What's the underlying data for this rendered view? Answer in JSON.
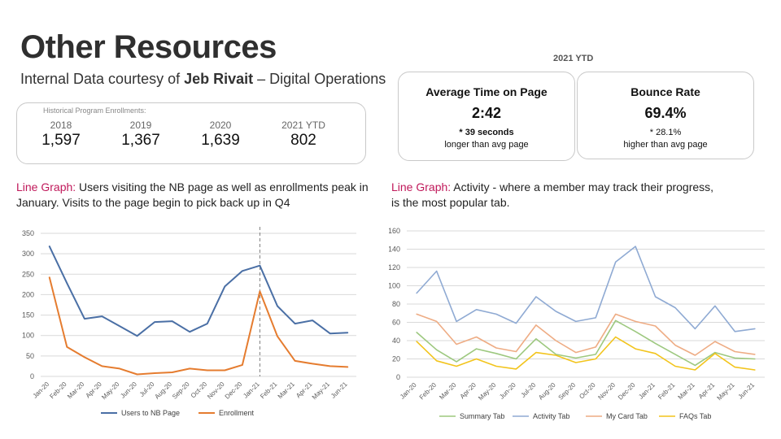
{
  "header": {
    "title": "Other Resources",
    "subtitle_prefix": "Internal Data courtesy of ",
    "subtitle_name": "Jeb Rivait",
    "subtitle_suffix": " – Digital Operations"
  },
  "historical": {
    "caption": "Historical Program Enrollments:",
    "items": [
      {
        "year": "2018",
        "value": "1,597"
      },
      {
        "year": "2019",
        "value": "1,367"
      },
      {
        "year": "2020",
        "value": "1,639"
      },
      {
        "year": "2021 YTD",
        "value": "802"
      }
    ]
  },
  "ytd_label": "2021 YTD",
  "kpis": [
    {
      "title_bold": "Average Time",
      "title_rest": " on Page",
      "value": "2:42",
      "note_bold": "* 39 seconds",
      "note_rest": "longer than avg page"
    },
    {
      "title_bold": "Bounce Rate",
      "title_rest": "",
      "value": "69.4%",
      "note_bold": "*  28.1%",
      "note_rest": "higher than avg page"
    }
  ],
  "captions": {
    "left": {
      "lg": "Line Graph:",
      "t1": " Users visiting the NB page as well as enrollments peak in ",
      "b1": "January",
      "t2": ". Visits to the page begin to pick back up in Q4"
    },
    "right": {
      "lg": "Line Graph:",
      "b1": " Activity",
      "t1": " - where a member may track their progress, ",
      "b2": "is the most popular tab",
      "t2": "."
    }
  },
  "colors": {
    "blue": "#4a6fa5",
    "orange": "#e57c2f",
    "green": "#9dc87f",
    "lightblue": "#8faad3",
    "peach": "#eeac84",
    "gold": "#f2c41c"
  },
  "chart_data": [
    {
      "type": "line",
      "categories": [
        "Jan-20",
        "Feb-20",
        "Mar-20",
        "Apr-20",
        "May-20",
        "Jun-20",
        "Jul-20",
        "Aug-20",
        "Sep-20",
        "Oct-20",
        "Nov-20",
        "Dec-20",
        "Jan-21",
        "Feb-21",
        "Mar-21",
        "Apr-21",
        "May-21",
        "Jun-21"
      ],
      "series": [
        {
          "name": "Users to NB Page",
          "color": "#4a6fa5",
          "values": [
            318,
            228,
            141,
            147,
            123,
            99,
            133,
            135,
            109,
            129,
            220,
            258,
            271,
            172,
            129,
            137,
            105,
            107
          ]
        },
        {
          "name": "Enrollment",
          "color": "#e57c2f",
          "values": [
            242,
            72,
            47,
            25,
            19,
            5,
            8,
            10,
            19,
            15,
            15,
            28,
            208,
            98,
            38,
            31,
            25,
            23
          ]
        }
      ],
      "ylim": [
        0,
        350
      ],
      "yticks": [
        0,
        50,
        100,
        150,
        200,
        250,
        300,
        350
      ],
      "marker_category": "Jan-21",
      "grid": true,
      "legend": "bottom"
    },
    {
      "type": "line",
      "categories": [
        "Jan-20",
        "Feb-20",
        "Mar-20",
        "Apr-20",
        "May-20",
        "Jun-20",
        "Jul-20",
        "Aug-20",
        "Sep-20",
        "Oct-20",
        "Nov-20",
        "Dec-20",
        "Jan-21",
        "Feb-21",
        "Mar-21",
        "Apr-21",
        "May-21",
        "Jun-21"
      ],
      "series": [
        {
          "name": "Summary Tab",
          "color": "#9dc87f",
          "values": [
            49,
            30,
            17,
            31,
            26,
            20,
            42,
            25,
            21,
            25,
            62,
            50,
            37,
            25,
            13,
            27,
            21,
            20
          ]
        },
        {
          "name": "Activity Tab",
          "color": "#8faad3",
          "values": [
            92,
            116,
            61,
            74,
            69,
            59,
            88,
            72,
            61,
            65,
            126,
            143,
            88,
            76,
            53,
            78,
            50,
            53
          ]
        },
        {
          "name": "My Card Tab",
          "color": "#eeac84",
          "values": [
            69,
            61,
            36,
            44,
            32,
            28,
            57,
            40,
            27,
            33,
            69,
            61,
            56,
            35,
            24,
            39,
            28,
            25
          ]
        },
        {
          "name": "FAQs Tab",
          "color": "#f2c41c",
          "values": [
            39,
            18,
            12,
            20,
            12,
            9,
            27,
            24,
            16,
            20,
            44,
            31,
            26,
            12,
            8,
            26,
            11,
            8
          ]
        }
      ],
      "ylim": [
        0,
        160
      ],
      "yticks": [
        0,
        20,
        40,
        60,
        80,
        100,
        120,
        140,
        160
      ],
      "grid": true,
      "legend": "bottom"
    }
  ]
}
